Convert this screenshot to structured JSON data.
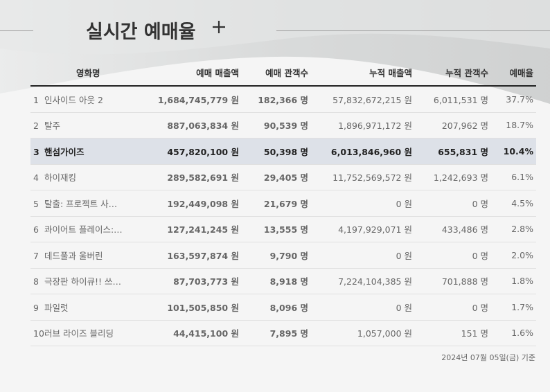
{
  "page": {
    "title": "실시간 예매율",
    "footnote": "2024년 07월 05일(금) 기준"
  },
  "table": {
    "headers": {
      "movie": "영화명",
      "sales": "예매 매출액",
      "audience": "예매 관객수",
      "cum_sales": "누적 매출액",
      "cum_audience": "누적 관객수",
      "rate": "예매율"
    },
    "rows": [
      {
        "rank": "1",
        "title": "인사이드 아웃 2",
        "sales": "1,684,745,779 원",
        "audience": "182,366 명",
        "cum_sales": "57,832,672,215 원",
        "cum_audience": "6,011,531 명",
        "rate": "37.7%"
      },
      {
        "rank": "2",
        "title": "탈주",
        "sales": "887,063,834 원",
        "audience": "90,539 명",
        "cum_sales": "1,896,971,172 원",
        "cum_audience": "207,962 명",
        "rate": "18.7%"
      },
      {
        "rank": "3",
        "title": "핸섬가이즈",
        "sales": "457,820,100 원",
        "audience": "50,398 명",
        "cum_sales": "6,013,846,960 원",
        "cum_audience": "655,831 명",
        "rate": "10.4%"
      },
      {
        "rank": "4",
        "title": "하이재킹",
        "sales": "289,582,691 원",
        "audience": "29,405 명",
        "cum_sales": "11,752,569,572 원",
        "cum_audience": "1,242,693 명",
        "rate": "6.1%"
      },
      {
        "rank": "5",
        "title": "탈출: 프로젝트 사…",
        "sales": "192,449,098 원",
        "audience": "21,679 명",
        "cum_sales": "0 원",
        "cum_audience": "0 명",
        "rate": "4.5%"
      },
      {
        "rank": "6",
        "title": "콰이어트 플레이스:…",
        "sales": "127,241,245 원",
        "audience": "13,555 명",
        "cum_sales": "4,197,929,071 원",
        "cum_audience": "433,486 명",
        "rate": "2.8%"
      },
      {
        "rank": "7",
        "title": "데드풀과 울버린",
        "sales": "163,597,874 원",
        "audience": "9,790 명",
        "cum_sales": "0 원",
        "cum_audience": "0 명",
        "rate": "2.0%"
      },
      {
        "rank": "8",
        "title": "극장판 하이큐!! 쓰…",
        "sales": "87,703,773 원",
        "audience": "8,918 명",
        "cum_sales": "7,224,104,385 원",
        "cum_audience": "701,888 명",
        "rate": "1.8%"
      },
      {
        "rank": "9",
        "title": "파일럿",
        "sales": "101,505,850 원",
        "audience": "8,096 명",
        "cum_sales": "0 원",
        "cum_audience": "0 명",
        "rate": "1.7%"
      },
      {
        "rank": "10",
        "title": "러브 라이즈 블리딩",
        "sales": "44,415,100 원",
        "audience": "7,895 명",
        "cum_sales": "1,057,000 원",
        "cum_audience": "151 명",
        "rate": "1.6%"
      }
    ],
    "highlight_rank": "3"
  },
  "icons": {
    "plus": "plus-icon"
  },
  "colors": {
    "highlight_row": "#dde1e8",
    "header_rule": "#222222",
    "background": "#f5f5f5"
  }
}
